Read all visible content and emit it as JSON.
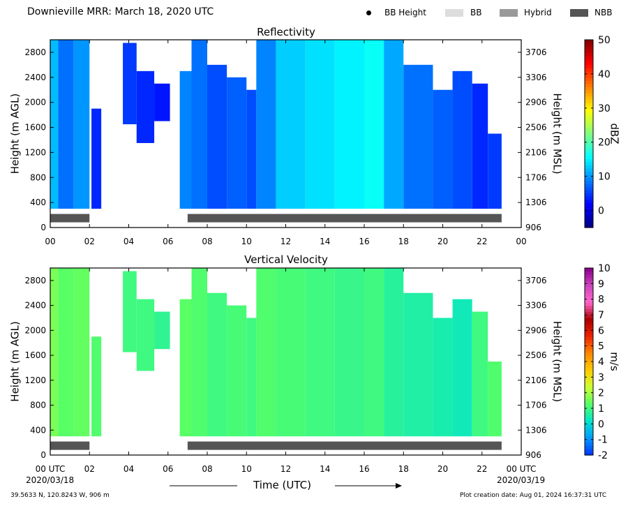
{
  "header": {
    "title": "Downieville MRR:  March 18, 2020 UTC",
    "legend": [
      {
        "label": "BB Height",
        "kind": "dot",
        "color": "#000000"
      },
      {
        "label": "BB",
        "kind": "box",
        "color": "#dddddd"
      },
      {
        "label": "Hybrid",
        "kind": "box",
        "color": "#999999"
      },
      {
        "label": "NBB",
        "kind": "box",
        "color": "#555555"
      }
    ]
  },
  "footer": {
    "location": "39.5633 N, 120.8243 W, 906 m",
    "creation": "Plot creation date: Aug 01, 2024 16:37:31 UTC",
    "xlabel": "Time (UTC)",
    "start_date": "2020/03/18",
    "end_date": "2020/03/19"
  },
  "chart_data": [
    {
      "type": "heatmap",
      "title": "Reflectivity",
      "ylabel": "Height (m AGL)",
      "ylabel_right": "Height (m MSL)",
      "colorbar_label": "dBZ",
      "ylim": [
        0,
        3000
      ],
      "xlim": [
        0,
        24
      ],
      "x_ticks": [
        "00",
        "02",
        "04",
        "06",
        "08",
        "10",
        "12",
        "14",
        "16",
        "18",
        "20",
        "22",
        "00"
      ],
      "y_ticks_left": [
        "0",
        "400",
        "800",
        "1200",
        "1600",
        "2000",
        "2400",
        "2800"
      ],
      "y_ticks_right": [
        "906",
        "1306",
        "1706",
        "2106",
        "2506",
        "2906",
        "3306",
        "3706"
      ],
      "colorbar_ticks": [
        "0",
        "10",
        "20",
        "30",
        "40",
        "50"
      ],
      "colorbar_range": [
        -5,
        50
      ],
      "colormap": [
        "#00007f",
        "#0000ff",
        "#007fff",
        "#00ffff",
        "#7fff7f",
        "#ffff00",
        "#ff7f00",
        "#ff0000",
        "#7f0000"
      ],
      "precip_periods": [
        {
          "start": 0.0,
          "end": 2.0,
          "type": "NBB"
        },
        {
          "start": 7.0,
          "end": 23.0,
          "type": "NBB"
        }
      ],
      "echo_segments": [
        {
          "start": 0.0,
          "end": 0.4,
          "top": 3000,
          "bottom": 300,
          "level": 12
        },
        {
          "start": 0.4,
          "end": 1.2,
          "top": 3000,
          "bottom": 300,
          "level": 8
        },
        {
          "start": 1.2,
          "end": 2.0,
          "top": 3000,
          "bottom": 300,
          "level": 10
        },
        {
          "start": 2.1,
          "end": 2.6,
          "top": 1900,
          "bottom": 300,
          "level": 4
        },
        {
          "start": 3.7,
          "end": 4.4,
          "top": 2950,
          "bottom": 1650,
          "level": 5
        },
        {
          "start": 4.4,
          "end": 5.3,
          "top": 2500,
          "bottom": 1350,
          "level": 4
        },
        {
          "start": 5.3,
          "end": 6.1,
          "top": 2300,
          "bottom": 1700,
          "level": 3
        },
        {
          "start": 6.6,
          "end": 7.2,
          "top": 2500,
          "bottom": 300,
          "level": 9
        },
        {
          "start": 7.2,
          "end": 8.0,
          "top": 3000,
          "bottom": 300,
          "level": 8
        },
        {
          "start": 8.0,
          "end": 9.0,
          "top": 2600,
          "bottom": 300,
          "level": 6
        },
        {
          "start": 9.0,
          "end": 10.0,
          "top": 2400,
          "bottom": 300,
          "level": 7
        },
        {
          "start": 10.0,
          "end": 10.5,
          "top": 2200,
          "bottom": 300,
          "level": 6
        },
        {
          "start": 10.5,
          "end": 11.5,
          "top": 3000,
          "bottom": 300,
          "level": 9
        },
        {
          "start": 11.5,
          "end": 13.0,
          "top": 3000,
          "bottom": 300,
          "level": 13
        },
        {
          "start": 13.0,
          "end": 14.5,
          "top": 3000,
          "bottom": 300,
          "level": 14
        },
        {
          "start": 14.5,
          "end": 16.0,
          "top": 3000,
          "bottom": 300,
          "level": 15
        },
        {
          "start": 16.0,
          "end": 17.0,
          "top": 3000,
          "bottom": 300,
          "level": 16
        },
        {
          "start": 17.0,
          "end": 18.0,
          "top": 3000,
          "bottom": 300,
          "level": 11
        },
        {
          "start": 18.0,
          "end": 19.5,
          "top": 2600,
          "bottom": 300,
          "level": 8
        },
        {
          "start": 19.5,
          "end": 20.5,
          "top": 2200,
          "bottom": 300,
          "level": 7
        },
        {
          "start": 20.5,
          "end": 21.5,
          "top": 2500,
          "bottom": 300,
          "level": 6
        },
        {
          "start": 21.5,
          "end": 22.3,
          "top": 2300,
          "bottom": 300,
          "level": 4
        },
        {
          "start": 22.3,
          "end": 23.0,
          "top": 1500,
          "bottom": 300,
          "level": 5
        }
      ]
    },
    {
      "type": "heatmap",
      "title": "Vertical Velocity",
      "ylabel": "Height (m AGL)",
      "ylabel_right": "Height (m MSL)",
      "colorbar_label": "m/s",
      "ylim": [
        0,
        3000
      ],
      "xlim": [
        0,
        24
      ],
      "x_ticks": [
        "00 UTC",
        "02",
        "04",
        "06",
        "08",
        "10",
        "12",
        "14",
        "16",
        "18",
        "20",
        "22",
        "00 UTC"
      ],
      "y_ticks_left": [
        "0",
        "400",
        "800",
        "1200",
        "1600",
        "2000",
        "2400",
        "2800"
      ],
      "y_ticks_right": [
        "906",
        "1306",
        "1706",
        "2106",
        "2506",
        "2906",
        "3306",
        "3706"
      ],
      "colorbar_ticks": [
        "-2",
        "-1",
        "0",
        "1",
        "2",
        "3",
        "4",
        "5",
        "6",
        "7",
        "8",
        "9",
        "10"
      ],
      "colorbar_range": [
        -2,
        10
      ],
      "colormap": [
        "#0033ff",
        "#0099ff",
        "#00e5cc",
        "#55ff66",
        "#ccff33",
        "#ffcc00",
        "#ff8800",
        "#ee2200",
        "#aa0000",
        "#ff66cc",
        "#cc44bb",
        "#880088"
      ],
      "precip_periods": [
        {
          "start": 0.0,
          "end": 2.0,
          "type": "NBB"
        },
        {
          "start": 7.0,
          "end": 23.0,
          "type": "NBB"
        }
      ],
      "echo_segments": [
        {
          "start": 0.0,
          "end": 0.4,
          "top": 3000,
          "bottom": 300,
          "level": 1.6
        },
        {
          "start": 0.4,
          "end": 1.2,
          "top": 3000,
          "bottom": 300,
          "level": 1.3
        },
        {
          "start": 1.2,
          "end": 2.0,
          "top": 3000,
          "bottom": 300,
          "level": 1.4
        },
        {
          "start": 2.1,
          "end": 2.6,
          "top": 1900,
          "bottom": 300,
          "level": 1.2
        },
        {
          "start": 3.7,
          "end": 4.4,
          "top": 2950,
          "bottom": 1650,
          "level": 1.0
        },
        {
          "start": 4.4,
          "end": 5.3,
          "top": 2500,
          "bottom": 1350,
          "level": 1.0
        },
        {
          "start": 5.3,
          "end": 6.1,
          "top": 2300,
          "bottom": 1700,
          "level": 0.8
        },
        {
          "start": 6.6,
          "end": 7.2,
          "top": 2500,
          "bottom": 300,
          "level": 1.3
        },
        {
          "start": 7.2,
          "end": 8.0,
          "top": 3000,
          "bottom": 300,
          "level": 1.2
        },
        {
          "start": 8.0,
          "end": 9.0,
          "top": 2600,
          "bottom": 300,
          "level": 1.0
        },
        {
          "start": 9.0,
          "end": 10.0,
          "top": 2400,
          "bottom": 300,
          "level": 1.1
        },
        {
          "start": 10.0,
          "end": 10.5,
          "top": 2200,
          "bottom": 300,
          "level": 1.0
        },
        {
          "start": 10.5,
          "end": 11.5,
          "top": 3000,
          "bottom": 300,
          "level": 1.2
        },
        {
          "start": 11.5,
          "end": 13.0,
          "top": 3000,
          "bottom": 300,
          "level": 1.1
        },
        {
          "start": 13.0,
          "end": 14.5,
          "top": 3000,
          "bottom": 300,
          "level": 1.0
        },
        {
          "start": 14.5,
          "end": 16.0,
          "top": 3000,
          "bottom": 300,
          "level": 0.9
        },
        {
          "start": 16.0,
          "end": 17.0,
          "top": 3000,
          "bottom": 300,
          "level": 1.0
        },
        {
          "start": 17.0,
          "end": 18.0,
          "top": 3000,
          "bottom": 300,
          "level": 0.7
        },
        {
          "start": 18.0,
          "end": 19.5,
          "top": 2600,
          "bottom": 300,
          "level": 0.6
        },
        {
          "start": 19.5,
          "end": 20.5,
          "top": 2200,
          "bottom": 300,
          "level": 0.5
        },
        {
          "start": 20.5,
          "end": 21.5,
          "top": 2500,
          "bottom": 300,
          "level": 0.4
        },
        {
          "start": 21.5,
          "end": 22.3,
          "top": 2300,
          "bottom": 300,
          "level": 1.0
        },
        {
          "start": 22.3,
          "end": 23.0,
          "top": 1500,
          "bottom": 300,
          "level": 1.2
        }
      ]
    }
  ]
}
